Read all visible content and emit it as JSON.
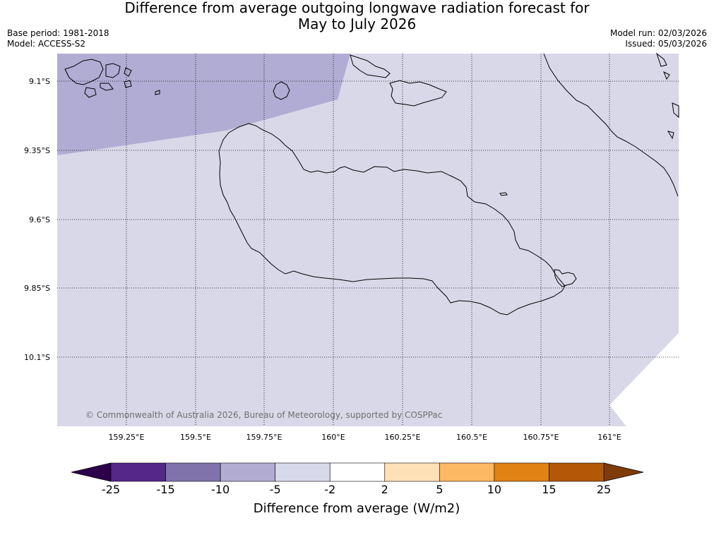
{
  "title": {
    "line1": "Difference from average outgoing longwave radiation forecast for",
    "line2": "May to July 2026"
  },
  "meta": {
    "base_period": "Base period: 1981-2018",
    "model": "Model: ACCESS-S2",
    "model_run": "Model run: 02/03/2026",
    "issued": "Issued: 05/03/2026"
  },
  "map": {
    "lat_labels": [
      "9.1°S",
      "9.35°S",
      "9.6°S",
      "9.85°S",
      "10.1°S"
    ],
    "lon_labels": [
      "159.25°E",
      "159.5°E",
      "159.75°E",
      "160°E",
      "160.25°E",
      "160.5°E",
      "160.75°E",
      "161°E"
    ],
    "credit": "© Commonwealth of Australia 2026, Bureau of Meteorology, supported by COSPPac",
    "region_colors": {
      "minus10_to_minus5": "#b1acd3",
      "minus5_to_minus2": "#d8d8e9"
    }
  },
  "colorbar": {
    "title": "Difference from average (W/m2)",
    "ticks": [
      "-25",
      "-15",
      "-10",
      "-5",
      "-2",
      "2",
      "5",
      "10",
      "15",
      "25"
    ],
    "extend_low_color": "#2d004b",
    "extend_high_color": "#7f3b08",
    "colors": [
      "#542788",
      "#8073ac",
      "#b2abd2",
      "#d8daeb",
      "#ffffff",
      "#fee0b6",
      "#fdb863",
      "#e08214",
      "#b35806"
    ]
  }
}
